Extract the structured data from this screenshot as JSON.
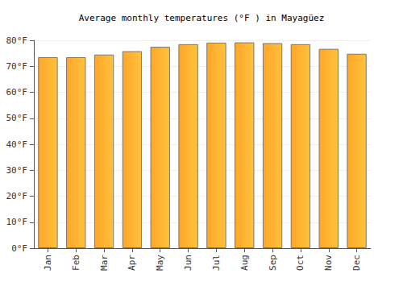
{
  "chart_data": {
    "type": "bar",
    "title": "Average monthly temperatures (°F ) in Mayagüez",
    "categories": [
      "Jan",
      "Feb",
      "Mar",
      "Apr",
      "May",
      "Jun",
      "Jul",
      "Aug",
      "Sep",
      "Oct",
      "Nov",
      "Dec"
    ],
    "values": [
      73.5,
      73.5,
      74.5,
      75.8,
      77.5,
      78.5,
      79.1,
      79.2,
      78.9,
      78.5,
      76.7,
      74.8
    ],
    "color": "#ffa629",
    "ylim": [
      0,
      80
    ],
    "yticks": [
      {
        "value": 0,
        "label": "0°F"
      },
      {
        "value": 10,
        "label": "10°F"
      },
      {
        "value": 20,
        "label": "20°F"
      },
      {
        "value": 30,
        "label": "30°F"
      },
      {
        "value": 40,
        "label": "40°F"
      },
      {
        "value": 50,
        "label": "50°F"
      },
      {
        "value": 60,
        "label": "60°F"
      },
      {
        "value": 70,
        "label": "70°F"
      },
      {
        "value": 80,
        "label": "80°F"
      }
    ],
    "grid": true
  }
}
